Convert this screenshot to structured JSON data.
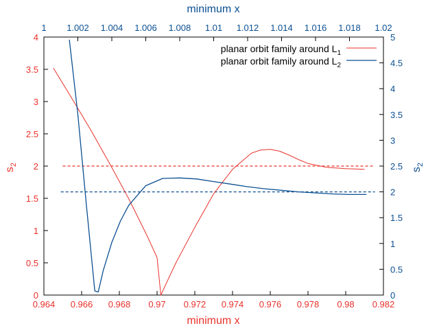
{
  "chart_data": {
    "type": "line",
    "colors": {
      "red": "#e8302a",
      "blue": "#0a4f91",
      "frame": "#000000"
    },
    "x_bottom": {
      "label": "minimum x",
      "range": [
        0.964,
        0.982
      ],
      "ticks": [
        0.964,
        0.966,
        0.968,
        0.97,
        0.972,
        0.974,
        0.976,
        0.978,
        0.98,
        0.982
      ],
      "tick_labels": [
        "0.964",
        "0.966",
        "0.968",
        "0.97",
        "0.972",
        "0.974",
        "0.976",
        "0.978",
        "0.98",
        "0.982"
      ]
    },
    "x_top": {
      "label": "minimum x",
      "range": [
        1.0,
        1.02
      ],
      "ticks": [
        1.0,
        1.002,
        1.004,
        1.006,
        1.008,
        1.01,
        1.012,
        1.014,
        1.016,
        1.018,
        1.02
      ],
      "tick_labels": [
        "1",
        "1.002",
        "1.004",
        "1.006",
        "1.008",
        "1.01",
        "1.012",
        "1.014",
        "1.016",
        "1.018",
        "1.02"
      ]
    },
    "y_left": {
      "label_main": "s",
      "label_sub": "2",
      "range": [
        0,
        4
      ],
      "ticks": [
        0,
        0.5,
        1,
        1.5,
        2,
        2.5,
        3,
        3.5,
        4
      ],
      "tick_labels": [
        "0",
        "0.5",
        "1",
        "1.5",
        "2",
        "2.5",
        "3",
        "3.5",
        "4"
      ]
    },
    "y_right": {
      "label_main": "s",
      "label_sub": "2",
      "range": [
        0,
        5
      ],
      "ticks": [
        0,
        0.5,
        1,
        1.5,
        2,
        2.5,
        3,
        3.5,
        4,
        4.5,
        5
      ],
      "tick_labels": [
        "0",
        "0.5",
        "1",
        "1.5",
        "2",
        "2.5",
        "3",
        "3.5",
        "4",
        "4.5",
        "5"
      ]
    },
    "series": [
      {
        "legend_main": "planar orbit family around L",
        "legend_sub": "1",
        "color": "#e8302a",
        "axes": "bottom-left",
        "x": [
          0.9645,
          0.9655,
          0.9665,
          0.9675,
          0.9685,
          0.9695,
          0.97,
          0.9702,
          0.9705,
          0.971,
          0.972,
          0.973,
          0.974,
          0.975,
          0.9755,
          0.976,
          0.9765,
          0.977,
          0.9775,
          0.978,
          0.979,
          0.98,
          0.981
        ],
        "y": [
          3.52,
          3.04,
          2.55,
          2.03,
          1.49,
          0.9,
          0.58,
          0.0,
          0.19,
          0.5,
          1.05,
          1.57,
          1.95,
          2.2,
          2.25,
          2.26,
          2.23,
          2.17,
          2.1,
          2.04,
          1.98,
          1.96,
          1.95
        ]
      },
      {
        "legend_main": "planar orbit family around L",
        "legend_sub": "2",
        "color": "#0a4f91",
        "axes": "top-right",
        "x": [
          1.0015,
          1.002,
          1.0025,
          1.003,
          1.0032,
          1.0035,
          1.004,
          1.0045,
          1.005,
          1.006,
          1.007,
          1.008,
          1.009,
          1.01,
          1.011,
          1.012,
          1.013,
          1.014,
          1.015,
          1.016,
          1.017,
          1.018,
          1.019
        ],
        "y": [
          4.95,
          3.5,
          1.75,
          0.08,
          0.06,
          0.48,
          1.02,
          1.43,
          1.74,
          2.12,
          2.26,
          2.27,
          2.25,
          2.2,
          2.15,
          2.1,
          2.06,
          2.03,
          2.0,
          1.98,
          1.96,
          1.95,
          1.95
        ]
      }
    ],
    "reference_lines": [
      {
        "axes": "bottom-left",
        "y": 2.0,
        "x_from": 0.965,
        "x_to": 0.9815,
        "color": "#e8302a"
      },
      {
        "axes": "top-right",
        "y": 2.0,
        "x_from": 1.001,
        "x_to": 1.0195,
        "color": "#0a4f91"
      }
    ],
    "legend_position": "top-right",
    "grid": false
  }
}
